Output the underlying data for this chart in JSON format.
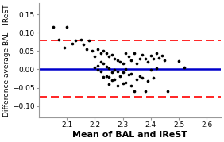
{
  "title": "",
  "xlabel": "Mean of BAL and IReST",
  "ylabel": "Difference average BAL - IReST",
  "xlim": [
    2.0,
    2.65
  ],
  "ylim": [
    -0.13,
    0.18
  ],
  "xticks": [
    2.1,
    2.2,
    2.3,
    2.4,
    2.5,
    2.6
  ],
  "yticks": [
    -0.1,
    -0.05,
    0.0,
    0.05,
    0.1,
    0.15
  ],
  "mean_line_y": 0.0,
  "upper_loa": 0.078,
  "lower_loa": -0.075,
  "mean_line_color": "#0000CC",
  "loa_color": "#FF0000",
  "dot_color": "#000000",
  "scatter_x": [
    2.05,
    2.07,
    2.09,
    2.1,
    2.12,
    2.13,
    2.15,
    2.16,
    2.17,
    2.18,
    2.19,
    2.2,
    2.2,
    2.21,
    2.21,
    2.21,
    2.22,
    2.22,
    2.22,
    2.23,
    2.23,
    2.23,
    2.24,
    2.24,
    2.24,
    2.25,
    2.25,
    2.25,
    2.25,
    2.26,
    2.26,
    2.26,
    2.27,
    2.27,
    2.27,
    2.28,
    2.28,
    2.28,
    2.29,
    2.29,
    2.3,
    2.3,
    2.3,
    2.31,
    2.31,
    2.31,
    2.32,
    2.32,
    2.33,
    2.33,
    2.33,
    2.34,
    2.34,
    2.35,
    2.35,
    2.36,
    2.36,
    2.37,
    2.37,
    2.38,
    2.38,
    2.39,
    2.39,
    2.4,
    2.4,
    2.41,
    2.41,
    2.42,
    2.42,
    2.43,
    2.44,
    2.45,
    2.46,
    2.5,
    2.52
  ],
  "scatter_y": [
    0.115,
    0.08,
    0.06,
    0.115,
    0.07,
    0.078,
    0.08,
    0.068,
    0.055,
    0.078,
    0.05,
    0.035,
    0.005,
    0.055,
    0.01,
    -0.002,
    0.045,
    0.02,
    -0.005,
    0.05,
    0.015,
    -0.02,
    0.045,
    0.008,
    -0.018,
    0.035,
    0.002,
    -0.02,
    -0.04,
    0.04,
    -0.008,
    -0.03,
    0.03,
    -0.002,
    -0.028,
    0.025,
    -0.005,
    -0.045,
    0.02,
    -0.018,
    0.015,
    -0.008,
    -0.038,
    0.045,
    0.0,
    -0.035,
    0.035,
    -0.015,
    0.025,
    -0.012,
    -0.045,
    0.045,
    -0.06,
    0.015,
    -0.028,
    0.03,
    -0.018,
    0.04,
    -0.022,
    0.03,
    -0.06,
    0.02,
    -0.032,
    0.038,
    -0.002,
    0.03,
    -0.022,
    0.045,
    0.002,
    0.032,
    0.038,
    0.025,
    -0.06,
    0.022,
    0.005
  ],
  "background_color": "#FFFFFF",
  "dot_size": 7,
  "xlabel_fontsize": 8,
  "ylabel_fontsize": 6.5,
  "tick_fontsize": 6.5
}
